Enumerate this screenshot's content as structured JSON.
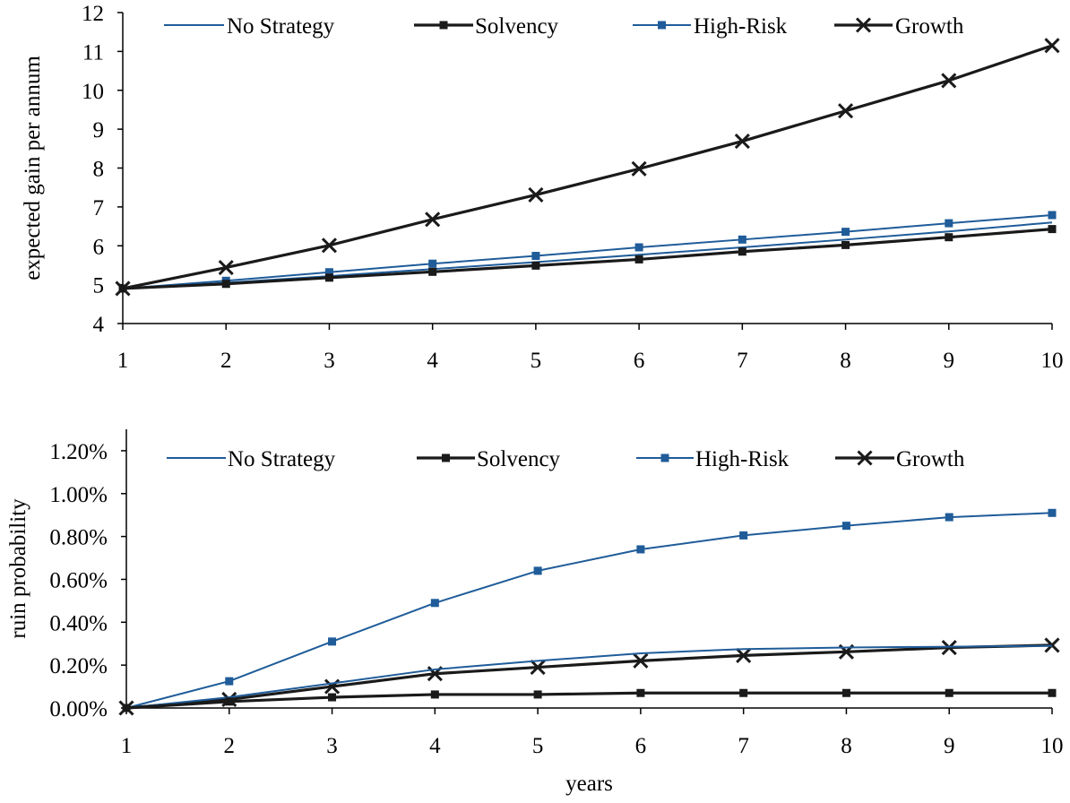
{
  "chart_data": [
    {
      "type": "line",
      "title": "",
      "xlabel": "",
      "ylabel": "expected gain per annum",
      "x": [
        1,
        2,
        3,
        4,
        5,
        6,
        7,
        8,
        9,
        10
      ],
      "xlim": [
        1,
        10
      ],
      "ylim": [
        4,
        12
      ],
      "y_ticks": [
        "4",
        "5",
        "6",
        "7",
        "8",
        "9",
        "10",
        "11",
        "12"
      ],
      "x_ticks": [
        "1",
        "2",
        "3",
        "4",
        "5",
        "6",
        "7",
        "8",
        "9",
        "10"
      ],
      "grid": false,
      "legend_position": "top",
      "series": [
        {
          "name": "No Strategy",
          "color": "#1f5c99",
          "marker": "none",
          "values": [
            4.9,
            5.05,
            5.22,
            5.4,
            5.58,
            5.77,
            5.96,
            6.16,
            6.37,
            6.6
          ]
        },
        {
          "name": "Solvency",
          "color": "#1a1a1a",
          "marker": "square",
          "values": [
            4.9,
            5.02,
            5.18,
            5.33,
            5.49,
            5.65,
            5.85,
            6.02,
            6.22,
            6.43
          ]
        },
        {
          "name": "High-Risk",
          "color": "#1f5c99",
          "marker": "square",
          "values": [
            4.9,
            5.1,
            5.32,
            5.54,
            5.74,
            5.96,
            6.16,
            6.36,
            6.58,
            6.79
          ]
        },
        {
          "name": "Growth",
          "color": "#1a1a1a",
          "marker": "x",
          "values": [
            4.9,
            5.44,
            6.01,
            6.68,
            7.31,
            7.98,
            8.69,
            9.47,
            10.25,
            11.15
          ]
        }
      ]
    },
    {
      "type": "line",
      "title": "",
      "xlabel": "years",
      "ylabel": "ruin probability",
      "x": [
        1,
        2,
        3,
        4,
        5,
        6,
        7,
        8,
        9,
        10
      ],
      "xlim": [
        1,
        10
      ],
      "ylim": [
        0,
        1.3
      ],
      "y_tick_values": [
        0,
        0.2,
        0.4,
        0.6,
        0.8,
        1.0,
        1.2
      ],
      "y_ticks": [
        "0.00%",
        "0.20%",
        "0.40%",
        "0.60%",
        "0.80%",
        "1.00%",
        "1.20%"
      ],
      "x_ticks": [
        "1",
        "2",
        "3",
        "4",
        "5",
        "6",
        "7",
        "8",
        "9",
        "10"
      ],
      "grid": false,
      "legend_position": "top",
      "series": [
        {
          "name": "No Strategy",
          "color": "#1f5c99",
          "marker": "none",
          "values": [
            0.0,
            0.05,
            0.115,
            0.18,
            0.22,
            0.255,
            0.275,
            0.282,
            0.286,
            0.29
          ]
        },
        {
          "name": "Solvency",
          "color": "#1a1a1a",
          "marker": "square",
          "values": [
            0.0,
            0.03,
            0.05,
            0.063,
            0.063,
            0.07,
            0.07,
            0.07,
            0.07,
            0.07
          ]
        },
        {
          "name": "High-Risk",
          "color": "#1f5c99",
          "marker": "square",
          "values": [
            0.0,
            0.125,
            0.31,
            0.49,
            0.64,
            0.74,
            0.805,
            0.85,
            0.89,
            0.91
          ]
        },
        {
          "name": "Growth",
          "color": "#1a1a1a",
          "marker": "x",
          "values": [
            0.0,
            0.04,
            0.1,
            0.16,
            0.19,
            0.22,
            0.245,
            0.262,
            0.282,
            0.293
          ]
        }
      ]
    }
  ]
}
